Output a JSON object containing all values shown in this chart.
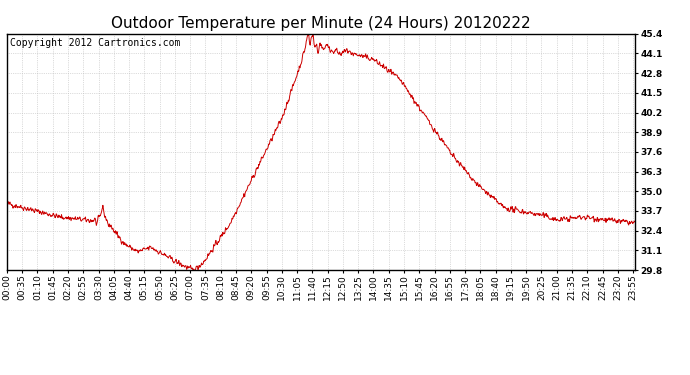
{
  "title": "Outdoor Temperature per Minute (24 Hours) 20120222",
  "copyright_text": "Copyright 2012 Cartronics.com",
  "line_color": "#cc0000",
  "bg_color": "#ffffff",
  "plot_bg_color": "#ffffff",
  "grid_color": "#bbbbbb",
  "grid_style": ":",
  "ylim": [
    29.8,
    45.4
  ],
  "yticks": [
    29.8,
    31.1,
    32.4,
    33.7,
    35.0,
    36.3,
    37.6,
    38.9,
    40.2,
    41.5,
    42.8,
    44.1,
    45.4
  ],
  "xtick_labels": [
    "00:00",
    "00:35",
    "01:10",
    "01:45",
    "02:20",
    "02:55",
    "03:30",
    "04:05",
    "04:40",
    "05:15",
    "05:50",
    "06:25",
    "07:00",
    "07:35",
    "08:10",
    "08:45",
    "09:20",
    "09:55",
    "10:30",
    "11:05",
    "11:40",
    "12:15",
    "12:50",
    "13:25",
    "14:00",
    "14:35",
    "15:10",
    "15:45",
    "16:20",
    "16:55",
    "17:30",
    "18:05",
    "18:40",
    "19:15",
    "19:50",
    "20:25",
    "21:00",
    "21:35",
    "22:10",
    "22:45",
    "23:20",
    "23:55"
  ],
  "title_fontsize": 11,
  "tick_fontsize": 6.5,
  "copyright_fontsize": 7,
  "outer_border": true
}
